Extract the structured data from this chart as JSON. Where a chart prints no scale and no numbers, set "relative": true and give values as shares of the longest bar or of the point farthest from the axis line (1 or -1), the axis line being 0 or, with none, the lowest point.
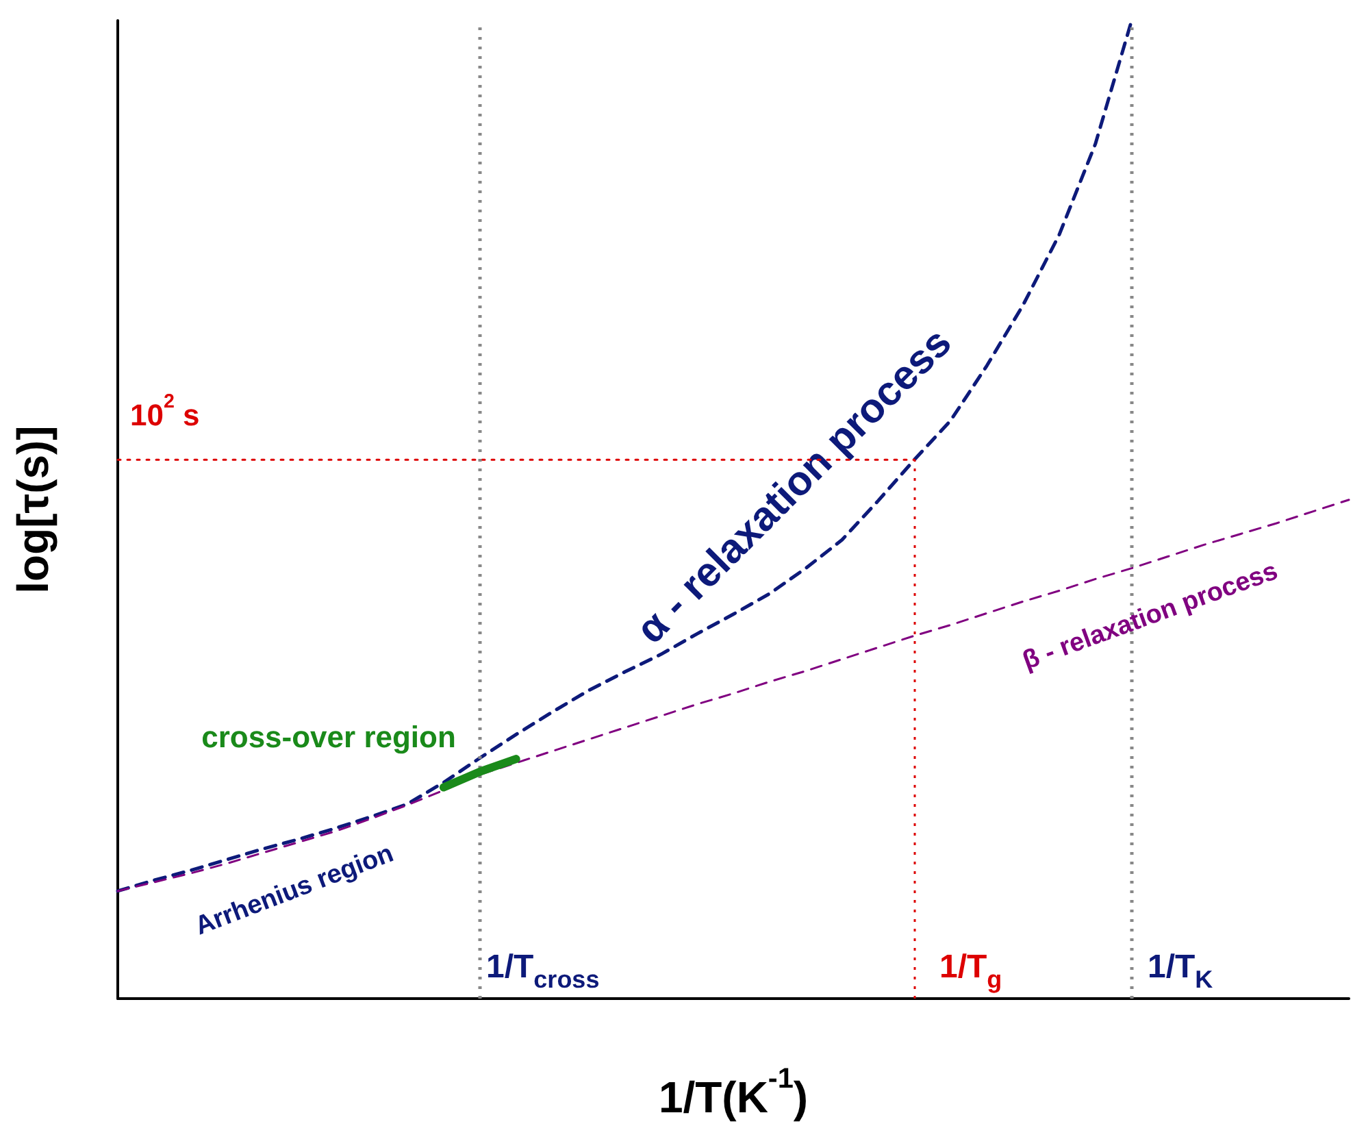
{
  "chart_data": {
    "type": "line",
    "relative": true,
    "xlabel": "1/T(K$^{-1}$)",
    "ylabel": "log[τ(s)]",
    "grid": false,
    "categories": [
      null,
      null,
      null,
      null,
      null,
      null,
      null,
      null,
      null,
      null,
      null,
      null,
      null,
      null,
      null,
      null,
      null,
      null,
      null,
      null,
      null,
      null,
      null,
      null,
      null,
      null,
      null,
      null,
      null,
      null,
      null,
      null,
      null,
      null,
      null
    ],
    "series": [
      {
        "color": "#0d1a7a",
        "line_style": "dashed",
        "values": [
          0.11,
          0.121,
          0.131,
          0.142,
          0.153,
          0.163,
          0.174,
          0.186,
          0.199,
          0.221,
          0.246,
          0.27,
          0.293,
          0.315,
          0.334,
          0.352,
          0.373,
          0.393,
          0.414,
          0.44,
          0.469,
          0.509,
          0.551,
          0.591,
          0.647,
          0.709,
          0.781,
          0.874,
          1,
          null,
          null,
          null,
          null,
          null,
          null
        ]
      },
      {
        "color": "#800080",
        "line_style": "dashed",
        "values": [
          0.11,
          0.119,
          0.128,
          0.138,
          0.149,
          0.16,
          0.171,
          0.184,
          0.198,
          0.213,
          0.229,
          0.241,
          0.253,
          0.265,
          0.277,
          0.289,
          0.301,
          0.312,
          0.324,
          0.335,
          0.347,
          0.359,
          0.371,
          0.382,
          0.394,
          0.406,
          0.417,
          0.429,
          0.44,
          0.452,
          0.464,
          0.475,
          0.486,
          0.498,
          0.51
        ]
      },
      {
        "color": "#1a8a1a",
        "line_style": "solid",
        "values": [
          null,
          null,
          null,
          null,
          null,
          null,
          null,
          null,
          null,
          0.216,
          0.232,
          0.245,
          null,
          null,
          null,
          null,
          null,
          null,
          null,
          null,
          null,
          null,
          null,
          null,
          null,
          null,
          null,
          null,
          null,
          null,
          null,
          null,
          null,
          null,
          null
        ]
      },
      {
        "color": "#dd0000",
        "line_style": "dotted",
        "values": [
          0.551,
          0.551,
          0.551,
          0.551,
          0.551,
          0.551,
          0.551,
          0.551,
          0.551,
          0.551,
          0.551,
          0.551,
          0.551,
          0.551,
          0.551,
          0.551,
          0.551,
          0.551,
          0.551,
          0.551,
          0.551,
          0.551,
          0.551,
          null,
          null,
          null,
          null,
          null,
          null,
          null,
          null,
          null,
          null,
          null,
          null
        ]
      }
    ],
    "annotations": [
      "α - relaxation process",
      "β - relaxation process",
      "Arrhenius region",
      "cross-over region",
      "10$^{2}$ s",
      "1/T$_{cross}$",
      "1/T$_{g}$",
      "1/T$_{K}$"
    ]
  }
}
